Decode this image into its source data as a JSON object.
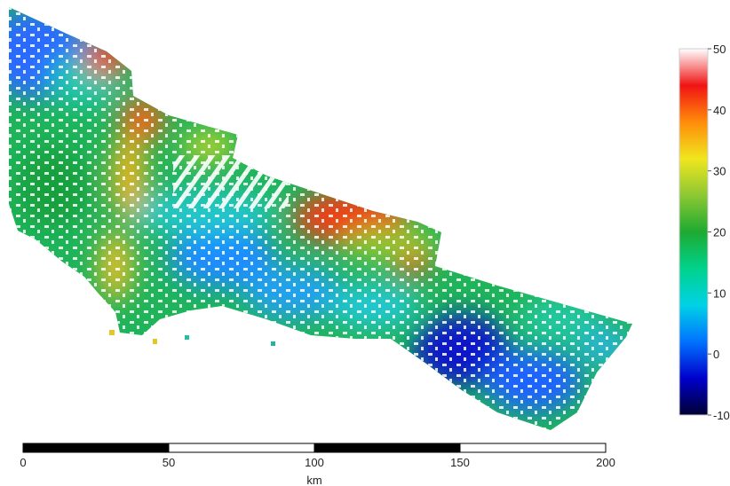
{
  "colorbar": {
    "stops": [
      "#000033",
      "#0000cc",
      "#0072ff",
      "#00d2e6",
      "#00d28c",
      "#1eaa32",
      "#8cc832",
      "#f0e61e",
      "#ff8c0a",
      "#f01414",
      "#ffffff"
    ],
    "ticks": [
      {
        "value": 50,
        "label": "50"
      },
      {
        "value": 40,
        "label": "40"
      },
      {
        "value": 30,
        "label": "30"
      },
      {
        "value": 20,
        "label": "20"
      },
      {
        "value": 10,
        "label": "10"
      },
      {
        "value": 0,
        "label": "0"
      },
      {
        "value": -10,
        "label": "-10"
      }
    ],
    "range": [
      -10,
      50
    ]
  },
  "scalebar": {
    "unit": "km",
    "ticks": [
      "0",
      "50",
      "100",
      "150",
      "200"
    ]
  }
}
